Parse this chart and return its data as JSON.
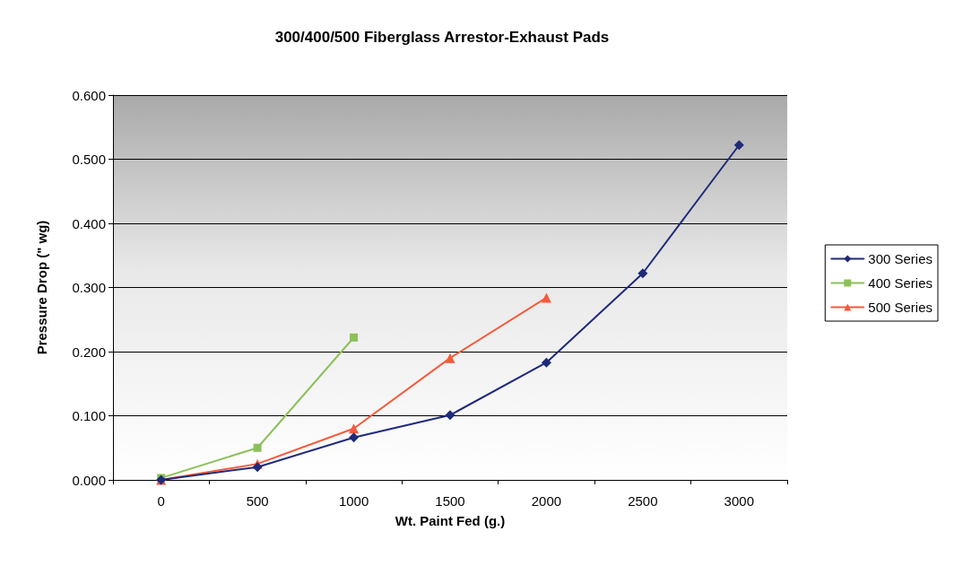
{
  "chart_data": {
    "type": "line",
    "title": "300/400/500 Fiberglass Arrestor-Exhaust Pads",
    "xlabel": "Wt. Paint Fed (g.)",
    "ylabel": "Pressure Drop (\" wg)",
    "categories": [
      "0",
      "500",
      "1000",
      "1500",
      "2000",
      "2500",
      "3000"
    ],
    "series": [
      {
        "name": "300 Series",
        "color": "#1f2a7a",
        "marker": "diamond",
        "values": [
          0,
          0.02,
          0.066,
          0.101,
          0.183,
          0.322,
          0.522
        ]
      },
      {
        "name": "400 Series",
        "color": "#8cc05a",
        "marker": "square",
        "values": [
          0.003,
          0.05,
          0.222,
          null,
          null,
          null,
          null
        ]
      },
      {
        "name": "500 Series",
        "color": "#f55a3c",
        "marker": "triangle",
        "values": [
          0,
          0.025,
          0.08,
          0.19,
          0.284,
          null,
          null
        ]
      }
    ],
    "ylim": [
      0,
      0.6
    ],
    "yticks": [
      {
        "value": 0,
        "label": "0.000"
      },
      {
        "value": 0.1,
        "label": "0.100"
      },
      {
        "value": 0.2,
        "label": "0.200"
      },
      {
        "value": 0.3,
        "label": "0.300"
      },
      {
        "value": 0.4,
        "label": "0.400"
      },
      {
        "value": 0.5,
        "label": "0.500"
      },
      {
        "value": 0.6,
        "label": "0.600"
      }
    ],
    "grid": "y",
    "legend": "right",
    "line_style": "solid"
  }
}
